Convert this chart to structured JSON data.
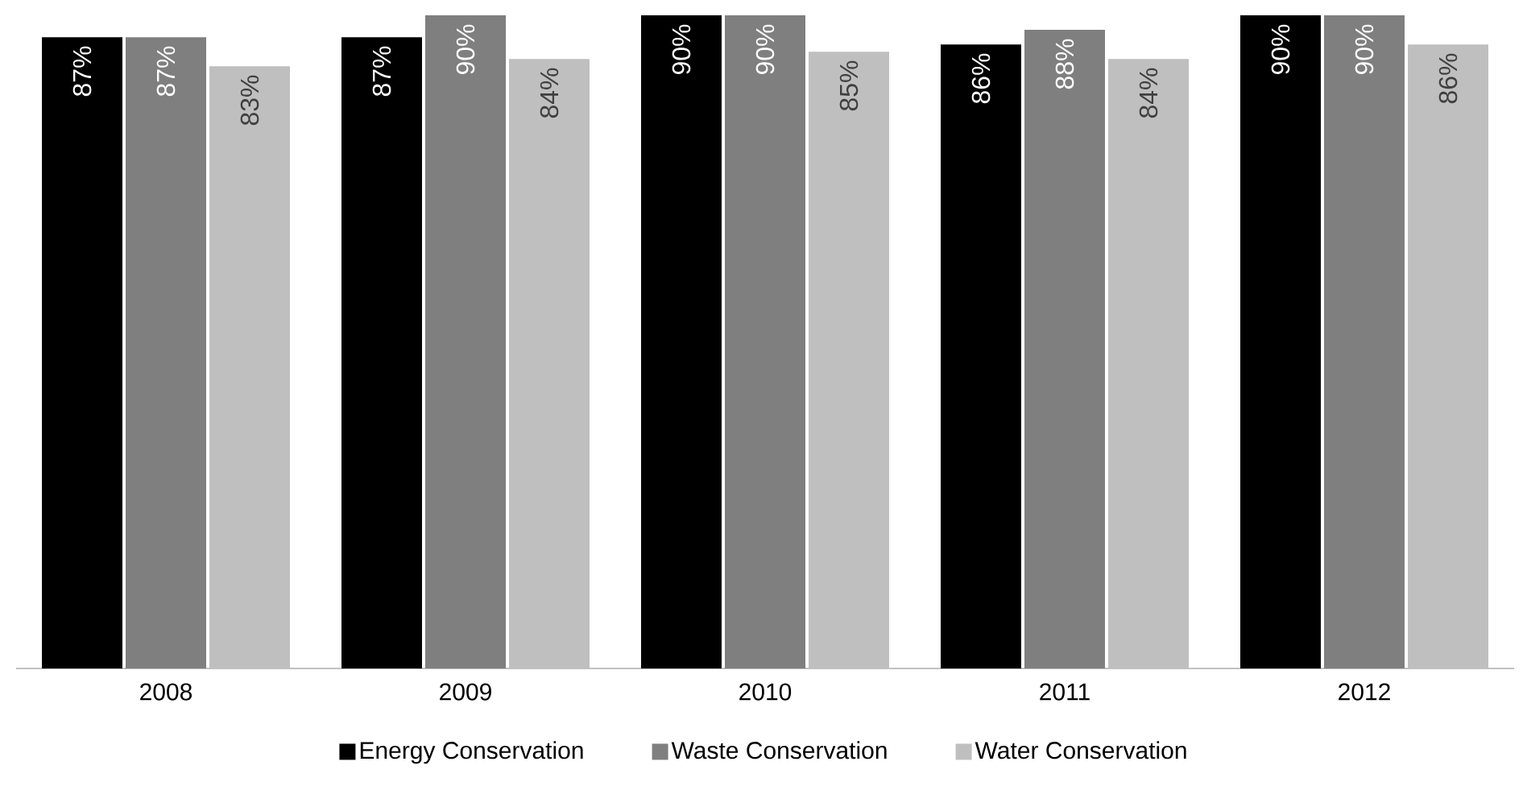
{
  "chart_data": {
    "type": "bar",
    "categories": [
      "2008",
      "2009",
      "2010",
      "2011",
      "2012"
    ],
    "series": [
      {
        "name": "Energy Conservation",
        "color": "#000000",
        "values": [
          87,
          87,
          90,
          86,
          90
        ],
        "value_labels": [
          "87%",
          "87%",
          "90%",
          "86%",
          "90%"
        ]
      },
      {
        "name": "Waste Conservation",
        "color": "#7f7f7f",
        "values": [
          87,
          90,
          90,
          88,
          90
        ],
        "value_labels": [
          "87%",
          "90%",
          "90%",
          "88%",
          "90%"
        ]
      },
      {
        "name": "Water Conservation",
        "color": "#bfbfbf",
        "values": [
          83,
          84,
          85,
          84,
          86
        ],
        "value_labels": [
          "83%",
          "84%",
          "85%",
          "84%",
          "86%"
        ]
      }
    ],
    "legend": "bottom"
  }
}
